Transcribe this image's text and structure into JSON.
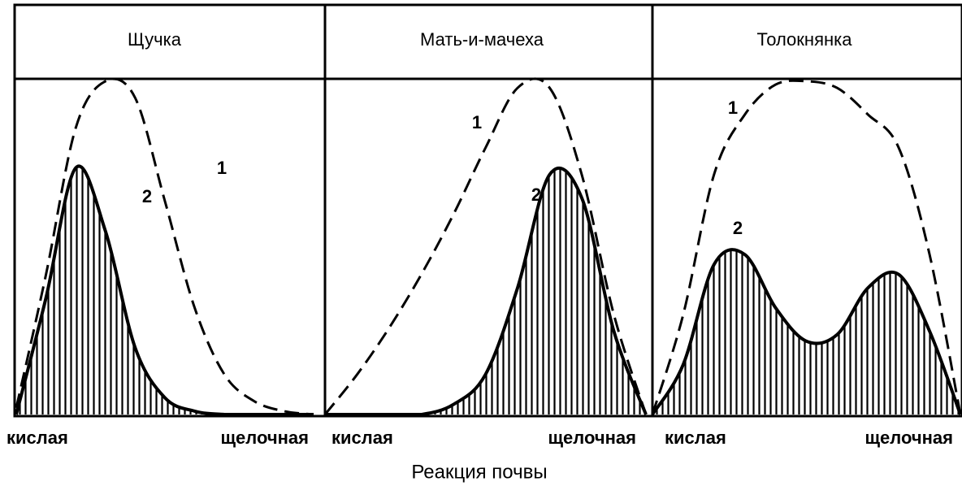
{
  "axis_title": "Реакция почвы",
  "chart_data": [
    {
      "type": "area",
      "title": "Щучка",
      "x_start_label": "кислая",
      "x_end_label": "щелочная",
      "curve_labels": [
        "1",
        "2"
      ],
      "x": [
        0,
        0.1,
        0.2,
        0.3,
        0.4,
        0.5,
        0.6,
        0.7,
        0.8,
        0.9,
        1.0
      ],
      "series": [
        {
          "name": "1",
          "style": "dashed",
          "values": [
            0.02,
            0.42,
            0.86,
            1.0,
            0.95,
            0.64,
            0.32,
            0.12,
            0.04,
            0.01,
            0.0
          ]
        },
        {
          "name": "2",
          "style": "solid-hatched",
          "values": [
            0.0,
            0.35,
            0.74,
            0.55,
            0.2,
            0.05,
            0.01,
            0.0,
            0.0,
            0.0,
            0.0
          ]
        }
      ]
    },
    {
      "type": "area",
      "title": "Мать-и-мачеха",
      "x_start_label": "кислая",
      "x_end_label": "щелочная",
      "curve_labels": [
        "1",
        "2"
      ],
      "x": [
        0,
        0.1,
        0.2,
        0.3,
        0.4,
        0.5,
        0.6,
        0.7,
        0.8,
        0.9,
        1.0
      ],
      "series": [
        {
          "name": "1",
          "style": "dashed",
          "values": [
            0.0,
            0.12,
            0.26,
            0.42,
            0.6,
            0.8,
            0.98,
            0.98,
            0.72,
            0.3,
            0.0
          ]
        },
        {
          "name": "2",
          "style": "solid-hatched",
          "values": [
            0.0,
            0.0,
            0.0,
            0.0,
            0.03,
            0.12,
            0.38,
            0.72,
            0.65,
            0.25,
            0.0
          ]
        }
      ]
    },
    {
      "type": "area",
      "title": "Толокнянка",
      "x_start_label": "кислая",
      "x_end_label": "щелочная",
      "curve_labels": [
        "1",
        "2"
      ],
      "x": [
        0,
        0.1,
        0.2,
        0.3,
        0.4,
        0.5,
        0.6,
        0.7,
        0.8,
        0.9,
        1.0
      ],
      "series": [
        {
          "name": "1",
          "style": "dashed",
          "values": [
            0.0,
            0.3,
            0.72,
            0.9,
            0.99,
            1.0,
            0.98,
            0.9,
            0.8,
            0.48,
            0.0
          ]
        },
        {
          "name": "2",
          "style": "solid-hatched",
          "values": [
            0.0,
            0.15,
            0.45,
            0.48,
            0.32,
            0.22,
            0.24,
            0.38,
            0.42,
            0.25,
            0.0
          ]
        }
      ]
    }
  ]
}
